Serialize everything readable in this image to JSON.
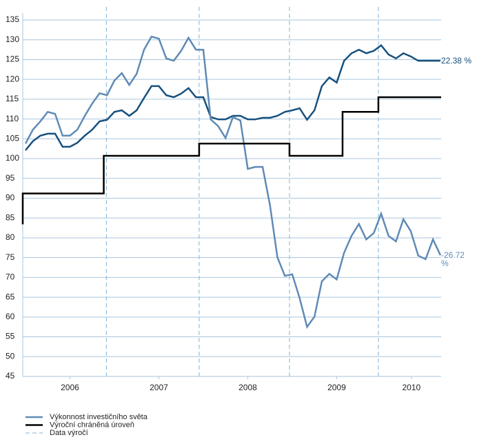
{
  "chart_data": {
    "type": "line",
    "xlim": [
      2005.969,
      2010.675
    ],
    "xticks": [
      {
        "value": 2006.5,
        "label": "2006"
      },
      {
        "value": 2007.5,
        "label": "2007"
      },
      {
        "value": 2008.5,
        "label": "2008"
      },
      {
        "value": 2009.5,
        "label": "2009"
      },
      {
        "value": 2010.34,
        "label": "2010"
      }
    ],
    "ylim": [
      45,
      135
    ],
    "yticks": [
      45,
      50,
      55,
      60,
      65,
      70,
      75,
      80,
      85,
      90,
      95,
      100,
      105,
      110,
      115,
      120,
      125,
      130,
      135
    ],
    "grid": true,
    "x": [
      2006,
      2006.083,
      2006.167,
      2006.25,
      2006.333,
      2006.417,
      2006.5,
      2006.583,
      2006.667,
      2006.75,
      2006.833,
      2006.917,
      2007,
      2007.083,
      2007.167,
      2007.25,
      2007.333,
      2007.417,
      2007.5,
      2007.583,
      2007.667,
      2007.75,
      2007.833,
      2007.917,
      2008,
      2008.083,
      2008.167,
      2008.25,
      2008.333,
      2008.417,
      2008.5,
      2008.583,
      2008.667,
      2008.75,
      2008.833,
      2008.917,
      2009,
      2009.083,
      2009.167,
      2009.25,
      2009.333,
      2009.417,
      2009.5,
      2009.583,
      2009.667,
      2009.75,
      2009.833,
      2009.917,
      2010,
      2010.083,
      2010.167,
      2010.25,
      2010.333,
      2010.417,
      2010.5,
      2010.583,
      2010.667
    ],
    "series": [
      {
        "color": "#16507e",
        "end_label": "22.38 %",
        "values": [
          102.1,
          104.4,
          105.8,
          106.3,
          106.3,
          103.0,
          103.0,
          104.0,
          105.8,
          107.3,
          109.4,
          109.8,
          111.8,
          112.2,
          110.8,
          112.2,
          115.3,
          118.3,
          118.3,
          116.0,
          115.5,
          116.4,
          117.8,
          115.5,
          115.5,
          110.5,
          109.9,
          109.9,
          110.8,
          110.8,
          109.9,
          109.9,
          110.3,
          110.3,
          110.8,
          111.8,
          112.2,
          112.7,
          109.8,
          112.2,
          118.3,
          120.5,
          119.2,
          124.7,
          126.6,
          127.5,
          126.6,
          127.2,
          128.6,
          126.3,
          125.3,
          126.6,
          125.8,
          124.7,
          124.7,
          124.7,
          124.7
        ]
      },
      {
        "name": "Výkonnost investičního světa",
        "color": "#5f8ab5",
        "end_label": "-26.72 %",
        "values": [
          103.8,
          107.3,
          109.4,
          111.8,
          111.3,
          105.8,
          105.8,
          107.3,
          110.8,
          113.9,
          116.5,
          116.0,
          119.7,
          121.6,
          118.6,
          121.4,
          127.5,
          130.8,
          130.3,
          125.3,
          124.7,
          127.2,
          130.5,
          127.5,
          127.5,
          109.9,
          108.2,
          105.2,
          110.5,
          109.6,
          97.4,
          97.9,
          97.9,
          88.2,
          75.1,
          70.4,
          70.8,
          64.8,
          57.5,
          60.1,
          69.0,
          70.9,
          69.5,
          76.2,
          80.5,
          83.5,
          79.6,
          81.2,
          86.1,
          80.5,
          79.1,
          84.7,
          81.7,
          75.5,
          74.6,
          79.6,
          75.6
        ]
      },
      {
        "name": "Výroční chráněná úroveň",
        "color": "#000000",
        "x": [
          2005.969,
          2005.969,
          2006.88,
          2006.88,
          2007.953,
          2007.953,
          2008.969,
          2008.969,
          2009.566,
          2009.566,
          2009.969,
          2009.969,
          2010.675
        ],
        "values": [
          83.4,
          91.2,
          91.2,
          100.7,
          100.7,
          103.8,
          103.8,
          100.7,
          100.7,
          111.8,
          111.8,
          115.5,
          115.5
        ]
      }
    ],
    "vlines": {
      "name": "Data výročí",
      "color": "#7fb2d6",
      "x": [
        2006.91,
        2007.953,
        2008.969,
        2009.969
      ]
    }
  }
}
